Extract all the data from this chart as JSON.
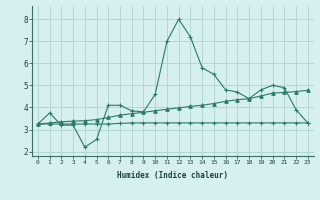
{
  "x": [
    0,
    1,
    2,
    3,
    4,
    5,
    6,
    7,
    8,
    9,
    10,
    11,
    12,
    13,
    14,
    15,
    16,
    17,
    18,
    19,
    20,
    21,
    22,
    23
  ],
  "line1": [
    3.25,
    3.75,
    3.2,
    3.2,
    2.2,
    2.55,
    4.1,
    4.1,
    3.85,
    3.8,
    4.6,
    7.0,
    8.0,
    7.2,
    5.8,
    5.5,
    4.8,
    4.7,
    4.4,
    4.8,
    5.0,
    4.9,
    3.9,
    3.3
  ],
  "line2": [
    3.25,
    3.25,
    3.25,
    3.25,
    3.25,
    3.25,
    3.25,
    3.28,
    3.3,
    3.3,
    3.3,
    3.3,
    3.3,
    3.3,
    3.3,
    3.3,
    3.3,
    3.3,
    3.3,
    3.3,
    3.3,
    3.3,
    3.3,
    3.3
  ],
  "line3": [
    3.25,
    3.3,
    3.35,
    3.38,
    3.4,
    3.45,
    3.55,
    3.65,
    3.72,
    3.78,
    3.85,
    3.92,
    3.98,
    4.05,
    4.1,
    4.18,
    4.28,
    4.35,
    4.4,
    4.52,
    4.65,
    4.68,
    4.72,
    4.78
  ],
  "line_color": "#2a7a6a",
  "bg_color": "#d6efef",
  "grid_color": "#aed4d4",
  "xlabel": "Humidex (Indice chaleur)",
  "ylim": [
    1.8,
    8.6
  ],
  "xlim": [
    -0.5,
    23.5
  ],
  "yticks": [
    2,
    3,
    4,
    5,
    6,
    7,
    8
  ],
  "xticks": [
    0,
    1,
    2,
    3,
    4,
    5,
    6,
    7,
    8,
    9,
    10,
    11,
    12,
    13,
    14,
    15,
    16,
    17,
    18,
    19,
    20,
    21,
    22,
    23
  ]
}
